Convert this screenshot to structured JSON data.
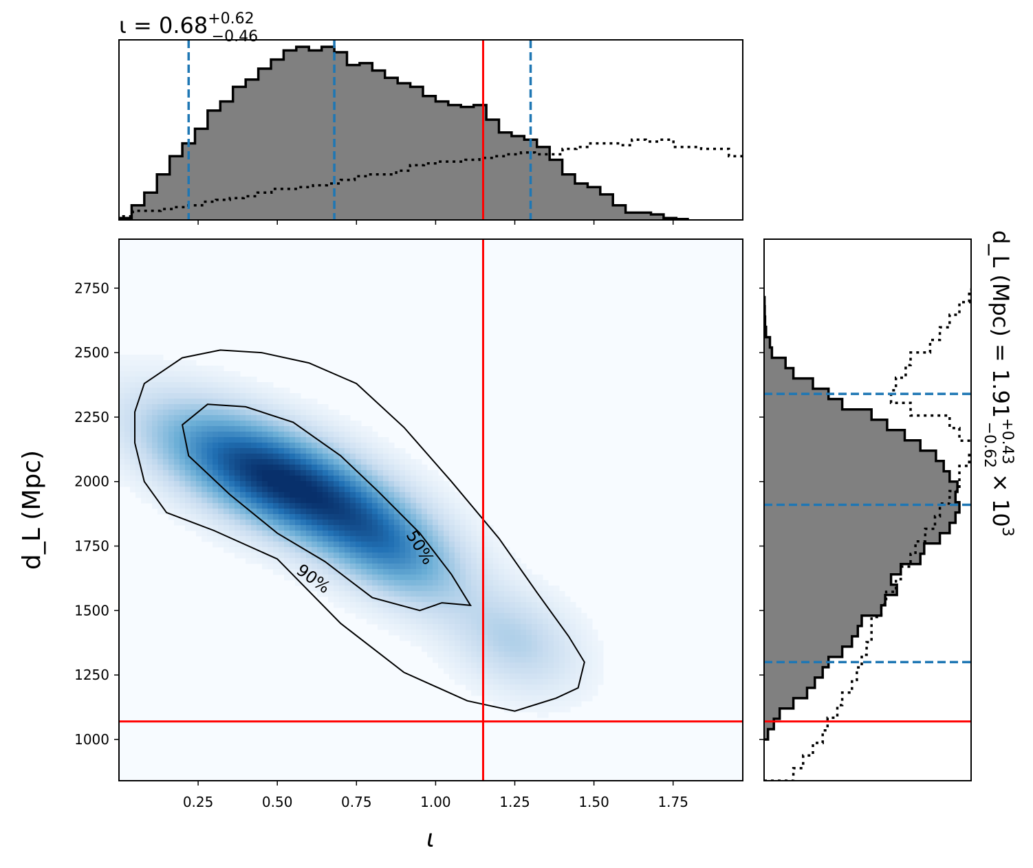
{
  "chart_data": {
    "type": "corner-plot",
    "parameters": [
      "ι",
      "d_L (Mpc)"
    ],
    "marginal_top": {
      "title": {
        "prefix": "ι = 0.68",
        "sup": "+0.62",
        "sub": "−0.46"
      },
      "xlim": [
        0.0,
        1.97
      ],
      "bin_edges": [
        0.0,
        0.04,
        0.08,
        0.12,
        0.16,
        0.2,
        0.24,
        0.28,
        0.32,
        0.36,
        0.4,
        0.44,
        0.48,
        0.52,
        0.56,
        0.6,
        0.64,
        0.68,
        0.72,
        0.76,
        0.8,
        0.84,
        0.88,
        0.92,
        0.96,
        1.0,
        1.04,
        1.08,
        1.12,
        1.16,
        1.2,
        1.24,
        1.28,
        1.32,
        1.36,
        1.4,
        1.44,
        1.48,
        1.52,
        1.56,
        1.6,
        1.64,
        1.68,
        1.72,
        1.76,
        1.8
      ],
      "posterior_counts": [
        1,
        8,
        15,
        25,
        35,
        42,
        50,
        60,
        65,
        73,
        77,
        83,
        88,
        93,
        95,
        93,
        95,
        92,
        85,
        86,
        82,
        78,
        75,
        73,
        68,
        65,
        63,
        62,
        63,
        55,
        48,
        46,
        44,
        40,
        33,
        25,
        20,
        18,
        14,
        8,
        4,
        4,
        3,
        1,
        0.5
      ],
      "prior_counts": [
        2,
        5,
        5,
        6,
        7,
        8,
        10,
        11,
        12,
        13,
        15,
        17,
        17,
        18,
        19,
        20,
        22,
        24,
        25,
        25,
        27,
        30,
        31,
        32,
        32,
        33,
        34,
        35,
        36,
        37,
        36,
        36,
        39,
        40,
        42,
        42,
        41,
        44,
        43,
        44,
        40,
        40,
        39,
        39,
        35
      ],
      "credible_lines": [
        0.22,
        0.68,
        1.3
      ],
      "truth": 1.15
    },
    "joint": {
      "xlabel": "ι",
      "ylabel": "d_L (Mpc)",
      "xlim": [
        0.0,
        1.97
      ],
      "ylim": [
        840,
        2940
      ],
      "xticks": [
        "0.25",
        "0.50",
        "0.75",
        "1.00",
        "1.25",
        "1.50",
        "1.75"
      ],
      "yticks": [
        "1000",
        "1250",
        "1500",
        "1750",
        "2000",
        "2250",
        "2500",
        "2750"
      ],
      "truth": {
        "x": 1.15,
        "y": 1070
      },
      "density_components": [
        {
          "x": 0.5,
          "y": 2010,
          "sx": 0.24,
          "sy": 170,
          "rho": -0.65,
          "w": 1.0
        },
        {
          "x": 0.85,
          "y": 1740,
          "sx": 0.16,
          "sy": 150,
          "rho": -0.55,
          "w": 0.45
        },
        {
          "x": 1.25,
          "y": 1380,
          "sx": 0.13,
          "sy": 130,
          "rho": -0.3,
          "w": 0.22
        }
      ],
      "contours": [
        {
          "label": "50%",
          "points": [
            [
              0.28,
              2300
            ],
            [
              0.4,
              2290
            ],
            [
              0.55,
              2230
            ],
            [
              0.7,
              2100
            ],
            [
              0.82,
              1960
            ],
            [
              0.95,
              1800
            ],
            [
              1.05,
              1640
            ],
            [
              1.11,
              1520
            ],
            [
              1.02,
              1530
            ],
            [
              0.95,
              1500
            ],
            [
              0.8,
              1550
            ],
            [
              0.65,
              1690
            ],
            [
              0.5,
              1800
            ],
            [
              0.35,
              1950
            ],
            [
              0.22,
              2100
            ],
            [
              0.2,
              2220
            ]
          ]
        },
        {
          "label": "90%",
          "points": [
            [
              0.08,
              2380
            ],
            [
              0.2,
              2480
            ],
            [
              0.32,
              2510
            ],
            [
              0.45,
              2500
            ],
            [
              0.6,
              2460
            ],
            [
              0.75,
              2380
            ],
            [
              0.9,
              2210
            ],
            [
              1.05,
              2000
            ],
            [
              1.2,
              1780
            ],
            [
              1.32,
              1570
            ],
            [
              1.42,
              1400
            ],
            [
              1.47,
              1300
            ],
            [
              1.45,
              1200
            ],
            [
              1.38,
              1160
            ],
            [
              1.25,
              1110
            ],
            [
              1.1,
              1150
            ],
            [
              0.9,
              1260
            ],
            [
              0.7,
              1450
            ],
            [
              0.5,
              1700
            ],
            [
              0.3,
              1810
            ],
            [
              0.15,
              1880
            ],
            [
              0.08,
              2000
            ],
            [
              0.05,
              2150
            ],
            [
              0.05,
              2270
            ]
          ]
        }
      ]
    },
    "marginal_right": {
      "title": {
        "prefix": "d_L (Mpc) = 1.91",
        "sup": "+0.43",
        "sub": "−0.62",
        "suffix": "× 10",
        "exp": "3"
      },
      "ylim": [
        840,
        2940
      ],
      "bin_edges": [
        1000,
        1040,
        1080,
        1120,
        1160,
        1200,
        1240,
        1280,
        1320,
        1360,
        1400,
        1440,
        1480,
        1520,
        1560,
        1600,
        1640,
        1680,
        1720,
        1760,
        1800,
        1840,
        1880,
        1920,
        1960,
        2000,
        2040,
        2080,
        2120,
        2160,
        2200,
        2240,
        2280,
        2320,
        2360,
        2400,
        2440,
        2480,
        2520,
        2560,
        2600,
        2640,
        2680,
        2720
      ],
      "posterior_counts": [
        2,
        5,
        8,
        15,
        22,
        26,
        30,
        33,
        40,
        45,
        48,
        50,
        60,
        62,
        68,
        65,
        70,
        80,
        82,
        90,
        95,
        98,
        100,
        98,
        99,
        95,
        92,
        88,
        80,
        72,
        63,
        55,
        40,
        33,
        25,
        15,
        11,
        4,
        3,
        1,
        0.5,
        0.3,
        0.2
      ],
      "prior_counts": [
        6,
        8,
        10,
        12,
        13,
        15,
        16,
        18,
        19,
        20,
        21,
        22,
        22,
        24,
        25,
        27,
        28,
        30,
        31,
        33,
        35,
        36,
        38,
        40,
        40,
        42,
        44,
        40,
        38,
        30,
        26,
        27,
        29,
        30,
        34,
        36,
        38,
        40,
        42,
        44,
        47,
        48,
        49
      ],
      "credible_lines": [
        1300,
        1910,
        2340
      ],
      "truth": 1070
    },
    "colors": {
      "hist_fill": "#808080",
      "credible": "#1f77b4",
      "truth": "#ff0000",
      "density": "#08306b"
    }
  }
}
